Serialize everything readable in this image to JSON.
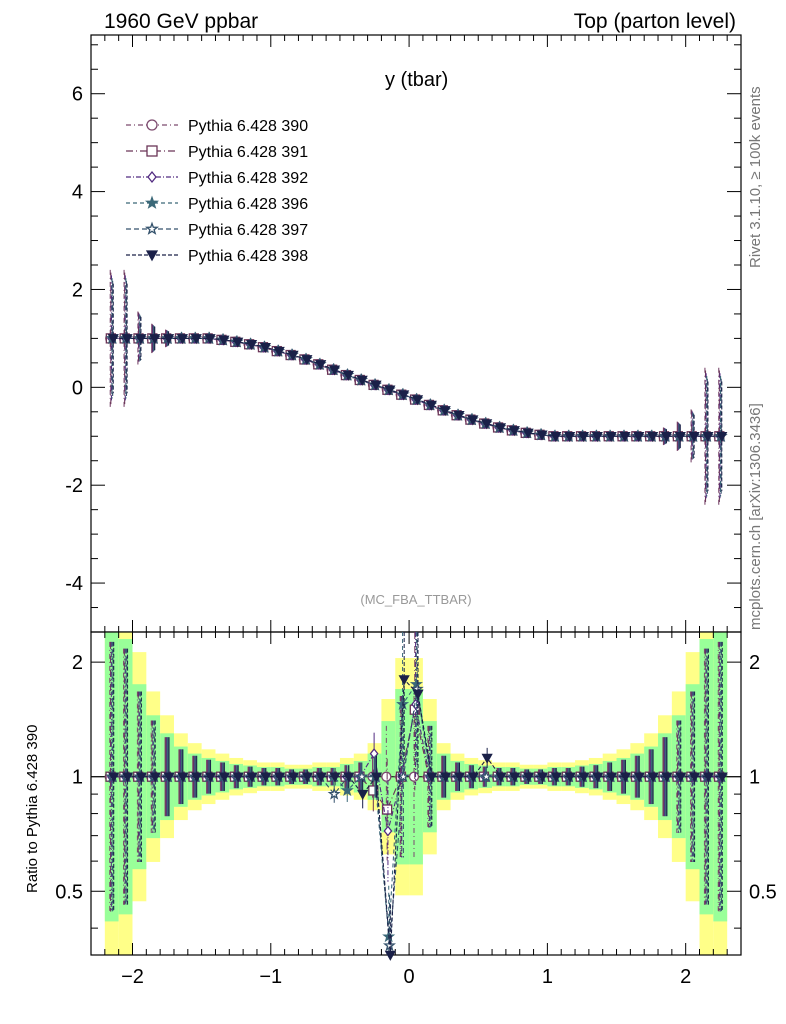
{
  "header": {
    "left_title": "1960 GeV ppbar",
    "right_title": "Top (parton level)",
    "side_text_top": "Rivet 3.1.10, ≥ 100k events",
    "side_text_bottom": "mcplots.cern.ch [arXiv:1306.3436]",
    "analysis_tag": "(MC_FBA_TTBAR)"
  },
  "chart_data": [
    {
      "type": "line",
      "title": "y (tbar)",
      "xlim": [
        -2.3,
        2.4
      ],
      "ylim": [
        -5,
        7.2
      ],
      "yticks": [
        "-4",
        "-2",
        "0",
        "2",
        "4",
        "6"
      ],
      "xticks": [
        "−2",
        "−1",
        "0",
        "1",
        "2"
      ],
      "x": [
        -2.15,
        -2.05,
        -1.95,
        -1.85,
        -1.75,
        -1.65,
        -1.55,
        -1.45,
        -1.35,
        -1.25,
        -1.15,
        -1.05,
        -0.95,
        -0.85,
        -0.75,
        -0.65,
        -0.55,
        -0.45,
        -0.35,
        -0.25,
        -0.15,
        -0.05,
        0.05,
        0.15,
        0.25,
        0.35,
        0.45,
        0.55,
        0.65,
        0.75,
        0.85,
        0.95,
        1.05,
        1.15,
        1.25,
        1.35,
        1.45,
        1.55,
        1.65,
        1.75,
        1.85,
        1.95,
        2.05,
        2.15,
        2.25
      ],
      "values": [
        1,
        1,
        1,
        1,
        1,
        1,
        1,
        1,
        0.97,
        0.93,
        0.88,
        0.82,
        0.74,
        0.66,
        0.57,
        0.47,
        0.36,
        0.25,
        0.15,
        0.05,
        -0.05,
        -0.15,
        -0.25,
        -0.36,
        -0.47,
        -0.57,
        -0.66,
        -0.74,
        -0.82,
        -0.88,
        -0.93,
        -0.97,
        -1,
        -1,
        -1,
        -1,
        -1,
        -1,
        -1,
        -1,
        -1,
        -1,
        -1,
        -1,
        -1
      ],
      "legend_position": "top-left",
      "series": [
        {
          "name": "Pythia 6.428 390",
          "color": "#7c4a6e",
          "marker": "circle-open",
          "dash": "5,3,1,3"
        },
        {
          "name": "Pythia 6.428 391",
          "color": "#6b3557",
          "marker": "square-open",
          "dash": "7,3,1,3"
        },
        {
          "name": "Pythia 6.428 392",
          "color": "#512a80",
          "marker": "diamond-open",
          "dash": "5,2,1,2"
        },
        {
          "name": "Pythia 6.428 396",
          "color": "#3b6878",
          "marker": "star-filled",
          "dash": "4,3"
        },
        {
          "name": "Pythia 6.428 397",
          "color": "#34526c",
          "marker": "star-open",
          "dash": "5,3"
        },
        {
          "name": "Pythia 6.428 398",
          "color": "#1a2048",
          "marker": "triangle-down-filled",
          "dash": "4,2"
        }
      ]
    },
    {
      "type": "line",
      "ylabel": "Ratio to Pythia 6.428 390",
      "yscale": "log",
      "ylim": [
        0.34,
        2.4
      ],
      "yticks": [
        "0.5",
        "1",
        "2"
      ],
      "band_colors": {
        "inner": "#99ff99",
        "outer": "#ffff88"
      },
      "band_halfwidth": [
        1.4,
        1.3,
        0.75,
        0.45,
        0.3,
        0.2,
        0.15,
        0.12,
        0.1,
        0.08,
        0.07,
        0.06,
        0.06,
        0.05,
        0.05,
        0.06,
        0.06,
        0.08,
        0.1,
        0.15,
        0.4,
        0.7,
        0.7,
        0.4,
        0.15,
        0.1,
        0.08,
        0.07,
        0.06,
        0.06,
        0.05,
        0.05,
        0.06,
        0.06,
        0.07,
        0.08,
        0.1,
        0.12,
        0.15,
        0.2,
        0.3,
        0.45,
        0.75,
        1.3,
        1.4
      ],
      "spikes": {
        "391": {
          "19": 0.92,
          "20": 0.82,
          "22": 1.5
        },
        "392": {
          "19": 1.15,
          "20": 0.72,
          "22": 1.55
        },
        "396": {
          "17": 0.92,
          "20": 0.38,
          "21": 1.55,
          "22": 1.75
        },
        "397": {
          "16": 0.9,
          "20": 0.36,
          "22": 1.7
        },
        "398": {
          "18": 0.9,
          "20": 0.34,
          "21": 1.8,
          "22": 1.65,
          "27": 1.12
        }
      }
    }
  ]
}
